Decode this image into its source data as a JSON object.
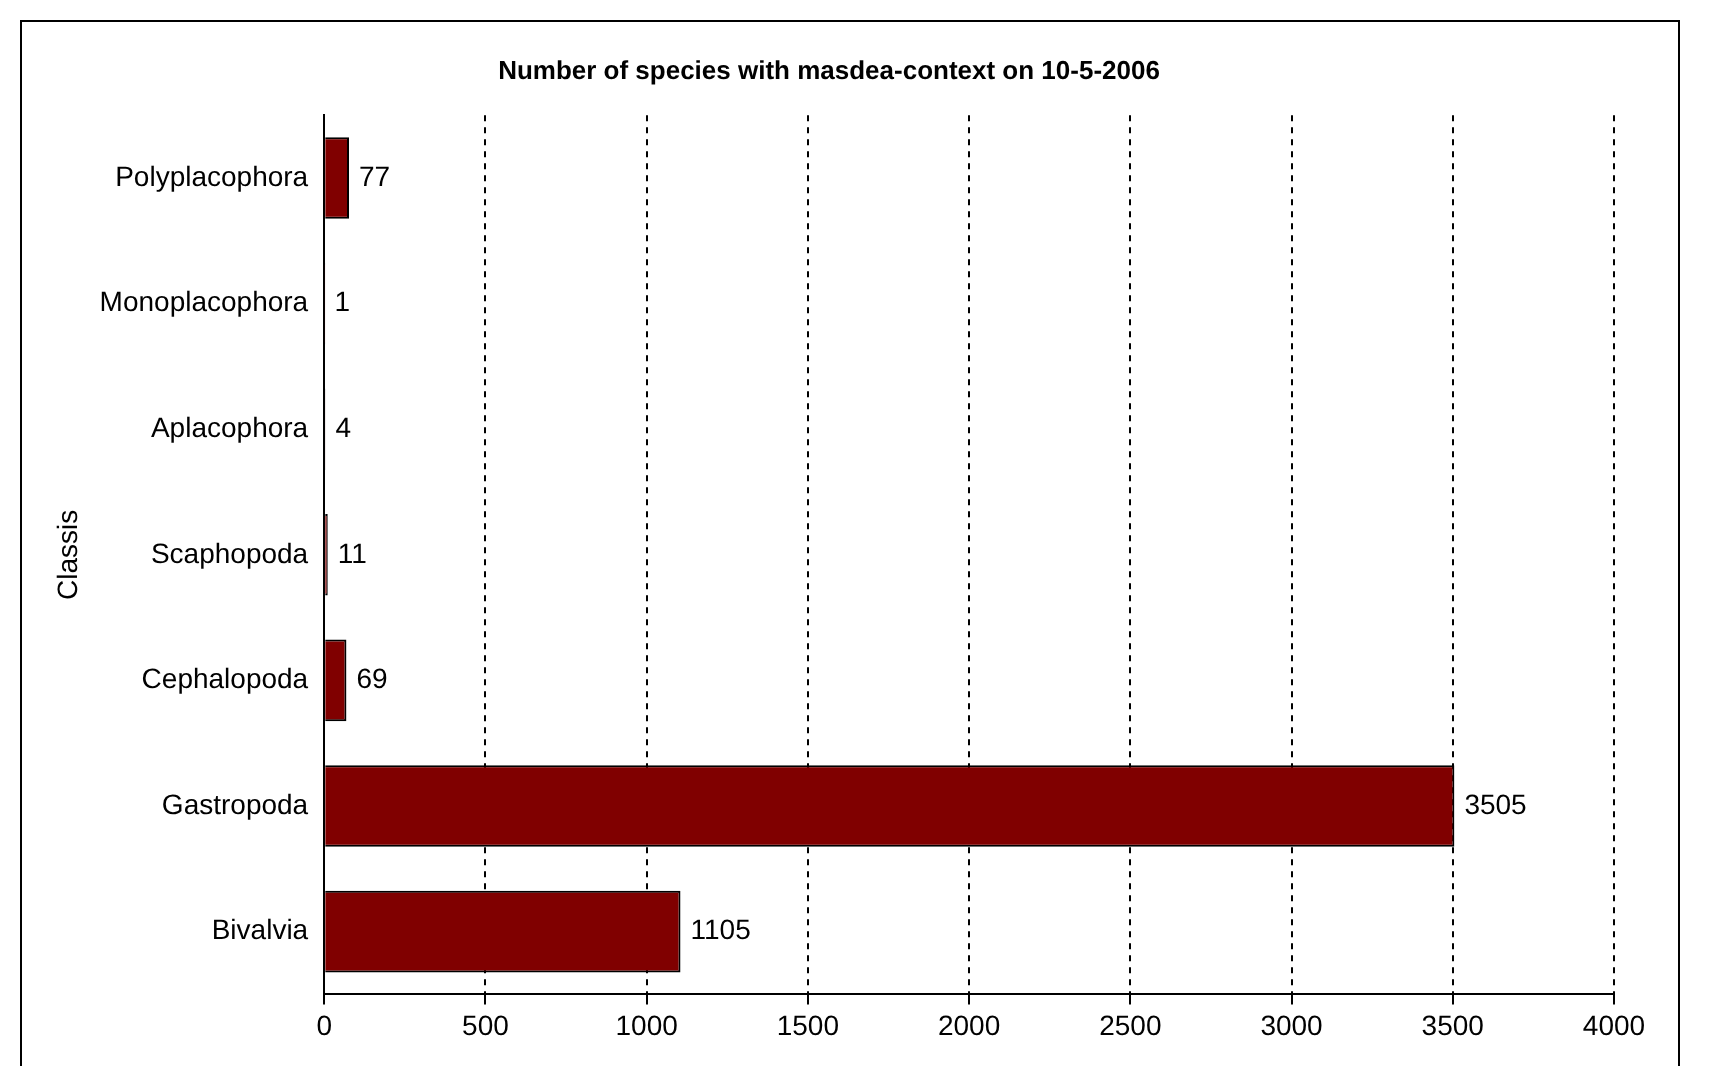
{
  "chart_data": {
    "type": "bar",
    "orientation": "horizontal",
    "title": "Number of species with masdea-context on 10-5-2006",
    "ylabel": "Classis",
    "categories": [
      "Polyplacophora",
      "Monoplacophora",
      "Aplacophora",
      "Scaphopoda",
      "Cephalopoda",
      "Gastropoda",
      "Bivalvia"
    ],
    "values": [
      77,
      1,
      4,
      11,
      69,
      3505,
      1105
    ],
    "color": "#800000",
    "xlim": [
      0,
      4000
    ],
    "xticks": [
      0,
      500,
      1000,
      1500,
      2000,
      2500,
      3000,
      3500,
      4000
    ],
    "grid": "x",
    "line_style": "dashed",
    "data_labels": true,
    "legend": false
  }
}
